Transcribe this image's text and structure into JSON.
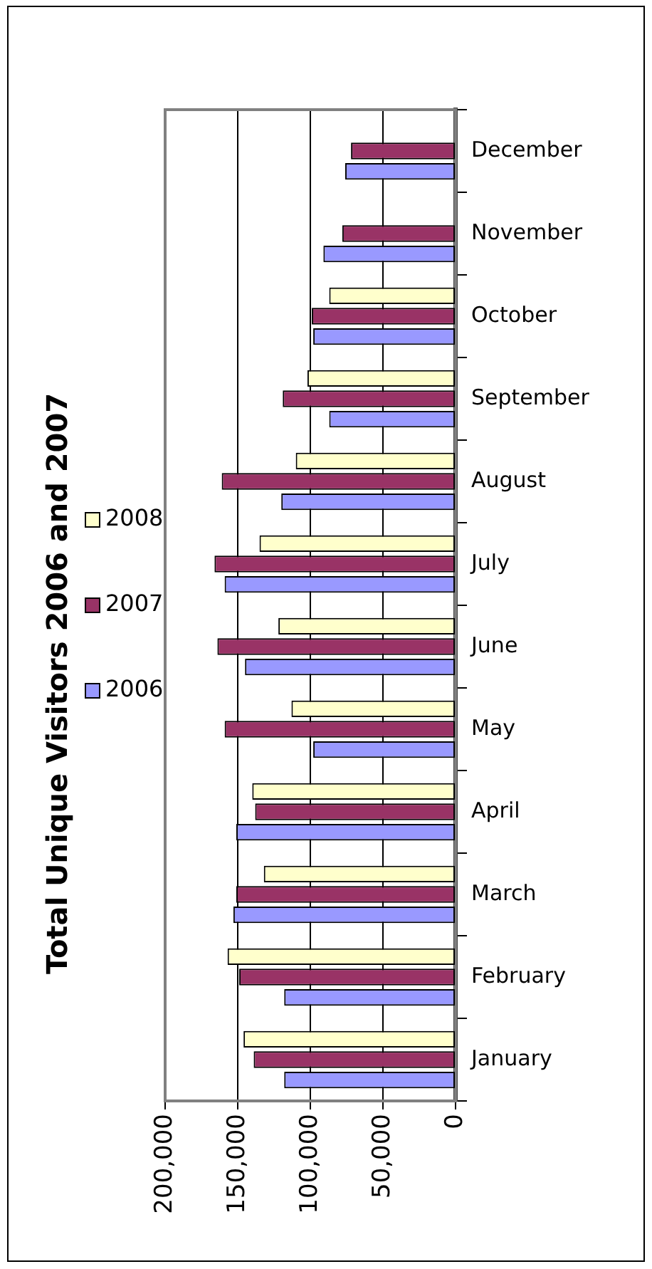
{
  "chart_data": {
    "type": "bar",
    "orientation": "horizontal",
    "title": "Total Unique Visitors 2006 and 2007",
    "categories": [
      "December",
      "November",
      "October",
      "September",
      "August",
      "July",
      "June",
      "May",
      "April",
      "March",
      "February",
      "January"
    ],
    "series": [
      {
        "name": "2008",
        "color": "#ffffcc",
        "values": [
          null,
          null,
          87000,
          102000,
          110000,
          135000,
          122000,
          113000,
          140000,
          132000,
          157000,
          146000
        ]
      },
      {
        "name": "2007",
        "color": "#993366",
        "values": [
          72000,
          78000,
          99000,
          119000,
          161000,
          166000,
          164000,
          159000,
          138000,
          151000,
          149000,
          139000
        ]
      },
      {
        "name": "2006",
        "color": "#9999ff",
        "values": [
          76000,
          91000,
          98000,
          87000,
          120000,
          159000,
          145000,
          98000,
          151000,
          153000,
          118000,
          118000
        ]
      }
    ],
    "xlim": [
      200000,
      0
    ],
    "xticks": [
      {
        "value": 200000,
        "label": "200,000"
      },
      {
        "value": 150000,
        "label": "150,000"
      },
      {
        "value": 100000,
        "label": "100,000"
      },
      {
        "value": 50000,
        "label": "50,000"
      },
      0
    ],
    "grid": "x",
    "legend": "left"
  }
}
